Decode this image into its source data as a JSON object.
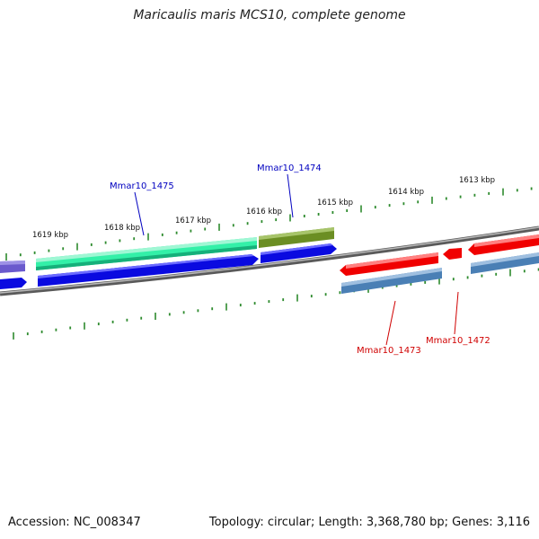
{
  "title": "Maricaulis maris MCS10, complete genome",
  "footer": {
    "accession": "Accession: NC_008347",
    "summary": "Topology: circular; Length: 3,368,780 bp; Genes: 3,116"
  },
  "map": {
    "kbp_labels": [
      "1619 kbp",
      "1618 kbp",
      "1617 kbp",
      "1616 kbp",
      "1615 kbp",
      "1614 kbp",
      "1613 kbp"
    ],
    "gene_labels": {
      "g1475": "Mmar10_1475",
      "g1474": "Mmar10_1474",
      "g1473": "Mmar10_1473",
      "g1472": "Mmar10_1472"
    },
    "colors": {
      "tick": "#2e8b2e",
      "backbone": "#808080",
      "blue_strand": "#0a0ae0",
      "red_strand": "#f00000",
      "mint_feature": "#33f0a8",
      "olive_feature": "#6b8e23",
      "slate_feature": "#4a7fb5",
      "purple_feature": "#6a5acd",
      "blue_label": "#0000c0",
      "red_label": "#d00000"
    }
  }
}
